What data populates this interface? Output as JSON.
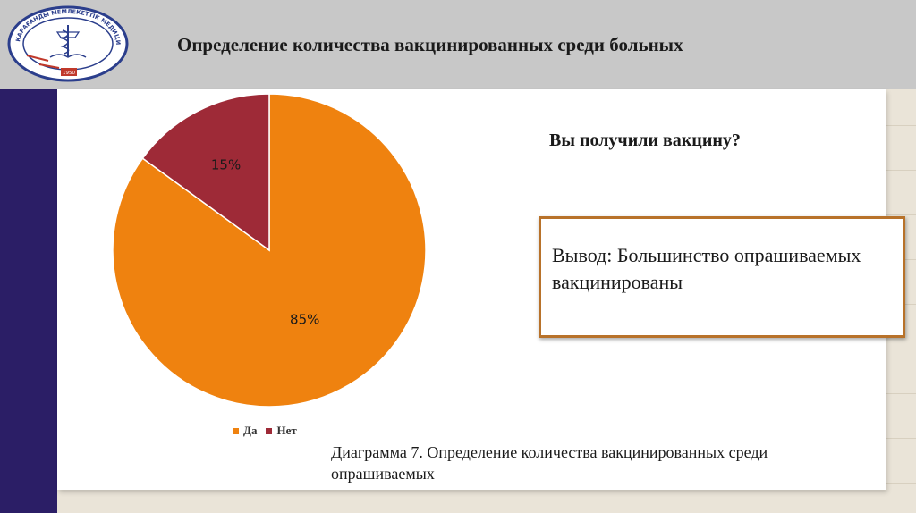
{
  "header": {
    "title": "Определение количества вакцинированных среди больных"
  },
  "logo": {
    "circle_text": "ҚАРАҒАНДЫ МЕМЛЕКЕТТІК МЕДИЦИНА УНИВЕРСИТЕТІ",
    "year": "1950"
  },
  "question": "Вы получили вакцину?",
  "conclusion": "Вывод: Большинство опрашиваемых вакцинированы",
  "caption": "Диаграмма 7. Определение количества вакцинированных среди опрашиваемых",
  "colors": {
    "left_bar": "#2b1e66",
    "header_band": "#c8c8c8",
    "box_border": "#b8722a"
  },
  "chart_data": {
    "type": "pie",
    "title": "",
    "categories": [
      "Да",
      "Нет"
    ],
    "values": [
      85,
      15
    ],
    "labels": [
      "85%",
      "15%"
    ],
    "colors": [
      "#ef820f",
      "#9e2a37"
    ],
    "start_angle_deg": 0,
    "direction": "clockwise",
    "legend_position": "bottom"
  }
}
